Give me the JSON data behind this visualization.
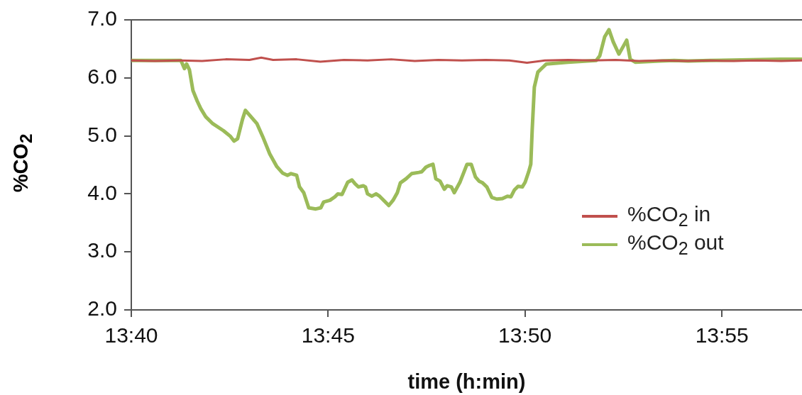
{
  "chart_data": {
    "type": "line",
    "xlabel": "time (h:min)",
    "ylabel": "%CO$_{2}$",
    "xlim": [
      13.6667,
      13.9506
    ],
    "xticks": [
      {
        "value": 13.6667,
        "label": "13:40"
      },
      {
        "value": 13.75,
        "label": "13:45"
      },
      {
        "value": 13.8333,
        "label": "13:50"
      },
      {
        "value": 13.9167,
        "label": "13:55"
      }
    ],
    "ylim": [
      2,
      7
    ],
    "yticks": [
      {
        "value": 2,
        "label": "2.0"
      },
      {
        "value": 3,
        "label": "3.0"
      },
      {
        "value": 4,
        "label": "4.0"
      },
      {
        "value": 5,
        "label": "5.0"
      },
      {
        "value": 6,
        "label": "6.0"
      },
      {
        "value": 7,
        "label": "7.0"
      }
    ],
    "grid": false,
    "legend": "right",
    "marker": "none",
    "line_style": "solid",
    "series": [
      {
        "name": "%CO$_{2}$ in",
        "color": "#c0504d",
        "x": [
          13.6667,
          13.6767,
          13.6867,
          13.6967,
          13.7067,
          13.7167,
          13.7217,
          13.7267,
          13.7367,
          13.7467,
          13.7567,
          13.7667,
          13.7767,
          13.7867,
          13.7967,
          13.8067,
          13.8167,
          13.8267,
          13.8342,
          13.8417,
          13.8517,
          13.8617,
          13.8717,
          13.8817,
          13.8917,
          13.9017,
          13.9117,
          13.9217,
          13.9317,
          13.9417,
          13.9506
        ],
        "values": [
          6.3,
          6.29,
          6.3,
          6.29,
          6.32,
          6.31,
          6.35,
          6.31,
          6.32,
          6.28,
          6.31,
          6.3,
          6.32,
          6.29,
          6.31,
          6.3,
          6.31,
          6.3,
          6.26,
          6.3,
          6.31,
          6.3,
          6.31,
          6.29,
          6.3,
          6.29,
          6.3,
          6.29,
          6.3,
          6.29,
          6.3
        ]
      },
      {
        "name": "%CO$_{2}$ out",
        "color": "#9bbb59",
        "x": [
          13.6667,
          13.6877,
          13.6892,
          13.6901,
          13.6913,
          13.6928,
          13.6946,
          13.6961,
          13.6982,
          13.7012,
          13.7057,
          13.7087,
          13.7102,
          13.7117,
          13.7138,
          13.715,
          13.7169,
          13.7199,
          13.7223,
          13.7253,
          13.7283,
          13.7307,
          13.7328,
          13.7343,
          13.7367,
          13.7379,
          13.7397,
          13.7418,
          13.7448,
          13.7469,
          13.7481,
          13.7508,
          13.7529,
          13.7541,
          13.7559,
          13.7583,
          13.7601,
          13.7613,
          13.7628,
          13.7649,
          13.7658,
          13.7667,
          13.7685,
          13.7703,
          13.7718,
          13.7757,
          13.7775,
          13.7793,
          13.7806,
          13.783,
          13.7854,
          13.7884,
          13.7896,
          13.7914,
          13.7929,
          13.7944,
          13.7956,
          13.7974,
          13.7992,
          13.8004,
          13.8022,
          13.8034,
          13.8058,
          13.8088,
          13.8106,
          13.8124,
          13.8139,
          13.8154,
          13.8172,
          13.8193,
          13.8214,
          13.8238,
          13.8259,
          13.8274,
          13.8289,
          13.8304,
          13.8322,
          13.8334,
          13.8349,
          13.8358,
          13.8364,
          13.8373,
          13.8388,
          13.8424,
          13.8515,
          13.8635,
          13.865,
          13.8671,
          13.8689,
          13.8707,
          13.8731,
          13.8749,
          13.8764,
          13.8779,
          13.88,
          13.8905,
          13.8965,
          13.9025,
          13.9116,
          13.9416,
          13.9506
        ],
        "values": [
          6.3,
          6.3,
          6.16,
          6.24,
          6.14,
          5.78,
          5.6,
          5.47,
          5.33,
          5.21,
          5.09,
          4.99,
          4.91,
          4.95,
          5.29,
          5.44,
          5.35,
          5.21,
          4.99,
          4.69,
          4.47,
          4.36,
          4.32,
          4.35,
          4.32,
          4.12,
          4.02,
          3.76,
          3.74,
          3.76,
          3.86,
          3.89,
          3.95,
          4.0,
          3.99,
          4.2,
          4.24,
          4.18,
          4.12,
          4.14,
          4.12,
          4.0,
          3.96,
          4.0,
          3.96,
          3.8,
          3.89,
          4.02,
          4.19,
          4.26,
          4.35,
          4.37,
          4.38,
          4.46,
          4.49,
          4.51,
          4.26,
          4.22,
          4.08,
          4.14,
          4.12,
          4.02,
          4.2,
          4.51,
          4.51,
          4.29,
          4.22,
          4.19,
          4.12,
          3.94,
          3.91,
          3.92,
          3.96,
          3.95,
          4.07,
          4.13,
          4.12,
          4.2,
          4.38,
          4.51,
          5.11,
          5.84,
          6.1,
          6.24,
          6.27,
          6.3,
          6.38,
          6.71,
          6.83,
          6.62,
          6.41,
          6.54,
          6.65,
          6.32,
          6.27,
          6.29,
          6.3,
          6.29,
          6.3,
          6.32,
          6.32
        ]
      }
    ]
  }
}
